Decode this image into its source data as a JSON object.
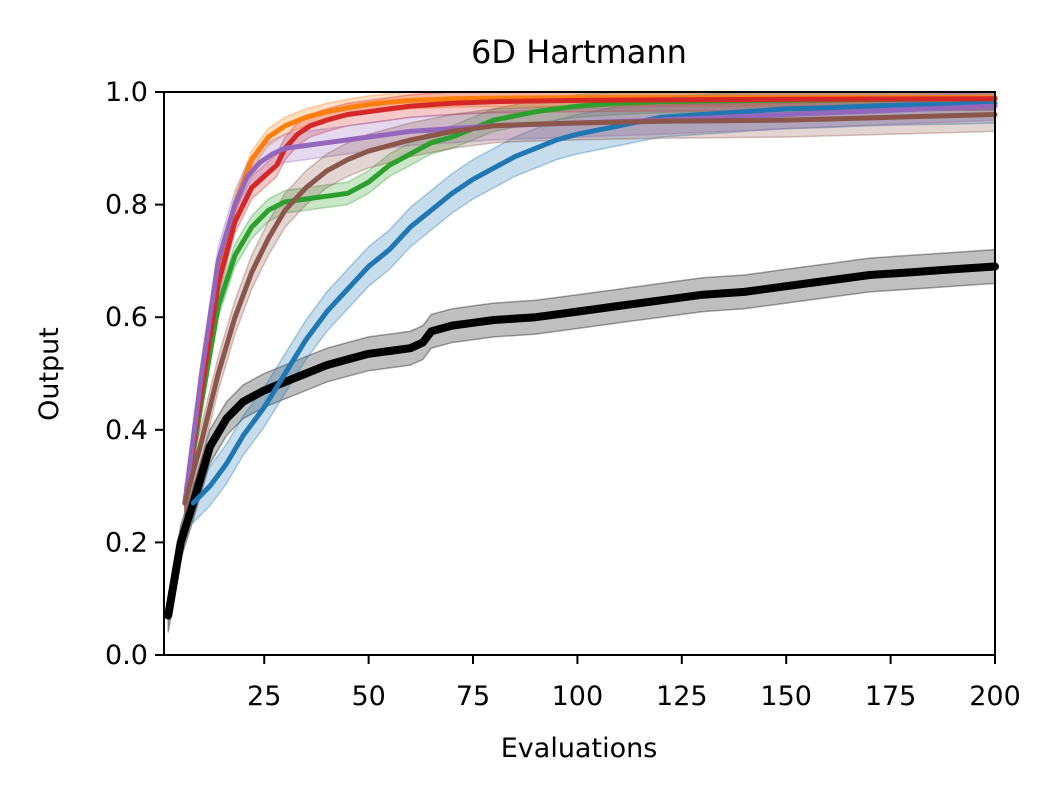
{
  "chart_data": {
    "type": "line",
    "title": "6D Hartmann",
    "xlabel": "Evaluations",
    "ylabel": "Output",
    "xlim": [
      1,
      200
    ],
    "ylim": [
      0.0,
      1.0
    ],
    "xticks": [
      25,
      50,
      75,
      100,
      125,
      150,
      175,
      200
    ],
    "yticks": [
      0.0,
      0.2,
      0.4,
      0.6,
      0.8,
      1.0
    ],
    "xtick_labels": [
      "25",
      "50",
      "75",
      "100",
      "125",
      "150",
      "175",
      "200"
    ],
    "ytick_labels": [
      "0.0",
      "0.2",
      "0.4",
      "0.6",
      "0.8",
      "1.0"
    ],
    "grid": false,
    "series": [
      {
        "name": "black",
        "color": "#000000",
        "x": [
          2,
          5,
          8,
          12,
          16,
          20,
          25,
          30,
          35,
          40,
          45,
          50,
          55,
          60,
          63,
          65,
          70,
          75,
          80,
          90,
          100,
          110,
          120,
          130,
          140,
          150,
          160,
          170,
          180,
          190,
          200
        ],
        "y": [
          0.07,
          0.2,
          0.27,
          0.37,
          0.42,
          0.45,
          0.47,
          0.485,
          0.5,
          0.515,
          0.525,
          0.535,
          0.54,
          0.545,
          0.555,
          0.575,
          0.585,
          0.59,
          0.595,
          0.6,
          0.61,
          0.62,
          0.63,
          0.64,
          0.645,
          0.655,
          0.665,
          0.675,
          0.68,
          0.685,
          0.69
        ],
        "band": 0.03
      },
      {
        "name": "blue",
        "color": "#1f77b4",
        "x": [
          8,
          12,
          16,
          20,
          25,
          30,
          35,
          40,
          45,
          50,
          55,
          60,
          65,
          70,
          75,
          80,
          85,
          90,
          95,
          100,
          110,
          120,
          130,
          140,
          150,
          160,
          170,
          180,
          190,
          200
        ],
        "y": [
          0.27,
          0.3,
          0.34,
          0.39,
          0.44,
          0.5,
          0.56,
          0.61,
          0.65,
          0.69,
          0.72,
          0.76,
          0.79,
          0.82,
          0.845,
          0.865,
          0.885,
          0.9,
          0.915,
          0.925,
          0.94,
          0.955,
          0.96,
          0.965,
          0.97,
          0.972,
          0.975,
          0.977,
          0.978,
          0.98
        ],
        "band": 0.035
      },
      {
        "name": "green",
        "color": "#2ca02c",
        "x": [
          6,
          10,
          14,
          18,
          22,
          26,
          30,
          35,
          40,
          45,
          50,
          55,
          60,
          65,
          70,
          75,
          80,
          90,
          100,
          110,
          120,
          140,
          160,
          180,
          200
        ],
        "y": [
          0.27,
          0.45,
          0.62,
          0.71,
          0.76,
          0.79,
          0.805,
          0.81,
          0.815,
          0.82,
          0.84,
          0.87,
          0.89,
          0.91,
          0.92,
          0.935,
          0.95,
          0.965,
          0.975,
          0.98,
          0.983,
          0.985,
          0.986,
          0.987,
          0.988
        ],
        "band": 0.02
      },
      {
        "name": "orange",
        "color": "#ff7f0e",
        "x": [
          6,
          10,
          14,
          18,
          22,
          26,
          30,
          35,
          40,
          45,
          50,
          55,
          60,
          70,
          80,
          100,
          120,
          150,
          200
        ],
        "y": [
          0.27,
          0.48,
          0.68,
          0.8,
          0.88,
          0.92,
          0.94,
          0.955,
          0.965,
          0.972,
          0.978,
          0.982,
          0.985,
          0.988,
          0.989,
          0.99,
          0.99,
          0.99,
          0.99
        ],
        "band": 0.015
      },
      {
        "name": "red",
        "color": "#d62728",
        "x": [
          6,
          10,
          14,
          18,
          22,
          25,
          28,
          30,
          33,
          36,
          40,
          45,
          50,
          55,
          60,
          70,
          80,
          100,
          120,
          150,
          200
        ],
        "y": [
          0.27,
          0.47,
          0.66,
          0.77,
          0.83,
          0.85,
          0.87,
          0.9,
          0.925,
          0.94,
          0.95,
          0.96,
          0.965,
          0.97,
          0.975,
          0.98,
          0.983,
          0.985,
          0.986,
          0.987,
          0.988
        ],
        "band": 0.02
      },
      {
        "name": "purple",
        "color": "#9467bd",
        "x": [
          6,
          10,
          14,
          18,
          21,
          24,
          27,
          30,
          35,
          40,
          45,
          50,
          55,
          60,
          70,
          80,
          100,
          120,
          150,
          200
        ],
        "y": [
          0.27,
          0.5,
          0.7,
          0.8,
          0.85,
          0.875,
          0.89,
          0.9,
          0.905,
          0.91,
          0.915,
          0.92,
          0.925,
          0.93,
          0.935,
          0.94,
          0.945,
          0.95,
          0.96,
          0.975
        ],
        "band": 0.025
      },
      {
        "name": "brown",
        "color": "#8c564b",
        "x": [
          6,
          10,
          14,
          18,
          22,
          26,
          30,
          35,
          40,
          45,
          50,
          55,
          60,
          70,
          80,
          90,
          100,
          120,
          150,
          175,
          200
        ],
        "y": [
          0.27,
          0.38,
          0.5,
          0.6,
          0.68,
          0.74,
          0.79,
          0.83,
          0.86,
          0.88,
          0.895,
          0.905,
          0.915,
          0.93,
          0.94,
          0.943,
          0.945,
          0.948,
          0.95,
          0.955,
          0.96
        ],
        "band": 0.03
      }
    ]
  }
}
